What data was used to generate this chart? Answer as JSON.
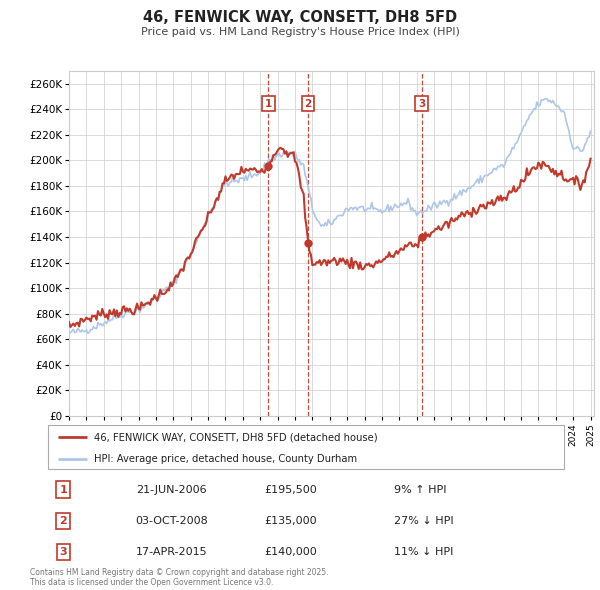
{
  "title": "46, FENWICK WAY, CONSETT, DH8 5FD",
  "subtitle": "Price paid vs. HM Land Registry's House Price Index (HPI)",
  "hpi_color": "#aec6e8",
  "price_color": "#c0392b",
  "grid_color": "#cccccc",
  "ylim": [
    0,
    270000
  ],
  "legend_price_label": "46, FENWICK WAY, CONSETT, DH8 5FD (detached house)",
  "legend_hpi_label": "HPI: Average price, detached house, County Durham",
  "transactions": [
    {
      "num": 1,
      "date": "21-JUN-2006",
      "price": 195500,
      "pct": "9%",
      "dir": "↑",
      "year": 2006.47
    },
    {
      "num": 2,
      "date": "03-OCT-2008",
      "price": 135000,
      "pct": "27%",
      "dir": "↓",
      "year": 2008.75
    },
    {
      "num": 3,
      "date": "17-APR-2015",
      "price": 140000,
      "pct": "11%",
      "dir": "↓",
      "year": 2015.29
    }
  ],
  "footer": "Contains HM Land Registry data © Crown copyright and database right 2025.\nThis data is licensed under the Open Government Licence v3.0."
}
